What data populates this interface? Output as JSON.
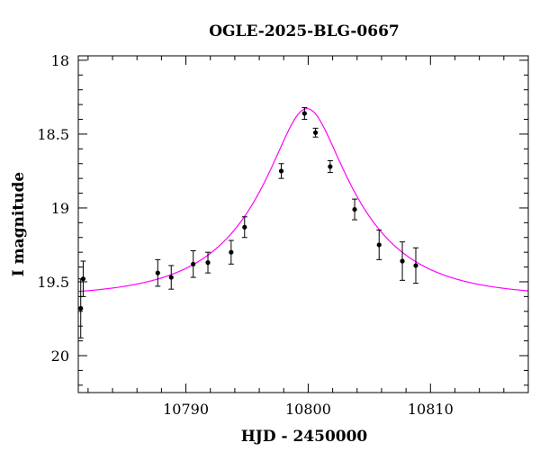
{
  "chart_data": {
    "type": "scatter",
    "title": "OGLE-2025-BLG-0667",
    "xlabel": "HJD - 2450000",
    "ylabel": "I magnitude",
    "xlim": [
      10781.2,
      10818.0
    ],
    "ylim": [
      20.25,
      17.97
    ],
    "y_inverted": true,
    "x_ticks": [
      10790,
      10800,
      10810
    ],
    "x_tick_labels": [
      "10790",
      "10800",
      "10810"
    ],
    "y_ticks": [
      18,
      18.5,
      19,
      19.5,
      20
    ],
    "y_tick_labels": [
      "18",
      "18.5",
      "19",
      "19.5",
      "20"
    ],
    "grid": false,
    "series": [
      {
        "kind": "points",
        "color": "#000000",
        "points": [
          {
            "x": 10781.4,
            "y": 19.68,
            "err": 0.2
          },
          {
            "x": 10781.6,
            "y": 19.48,
            "err": 0.12
          },
          {
            "x": 10787.7,
            "y": 19.44,
            "err": 0.09
          },
          {
            "x": 10788.8,
            "y": 19.47,
            "err": 0.08
          },
          {
            "x": 10790.6,
            "y": 19.38,
            "err": 0.09
          },
          {
            "x": 10791.8,
            "y": 19.37,
            "err": 0.07
          },
          {
            "x": 10793.7,
            "y": 19.3,
            "err": 0.08
          },
          {
            "x": 10794.8,
            "y": 19.13,
            "err": 0.07
          },
          {
            "x": 10797.8,
            "y": 18.75,
            "err": 0.05
          },
          {
            "x": 10799.7,
            "y": 18.36,
            "err": 0.04
          },
          {
            "x": 10800.6,
            "y": 18.49,
            "err": 0.03
          },
          {
            "x": 10801.8,
            "y": 18.72,
            "err": 0.04
          },
          {
            "x": 10803.8,
            "y": 19.01,
            "err": 0.07
          },
          {
            "x": 10805.8,
            "y": 19.25,
            "err": 0.1
          },
          {
            "x": 10807.7,
            "y": 19.36,
            "err": 0.13
          },
          {
            "x": 10808.8,
            "y": 19.39,
            "err": 0.12
          }
        ]
      },
      {
        "kind": "model",
        "color": "#ff00ff",
        "model": "Paczynski microlensing fit",
        "t0": 10799.9,
        "u0": 0.32,
        "tE": 8.0,
        "baseline_mag": 19.605
      }
    ]
  }
}
